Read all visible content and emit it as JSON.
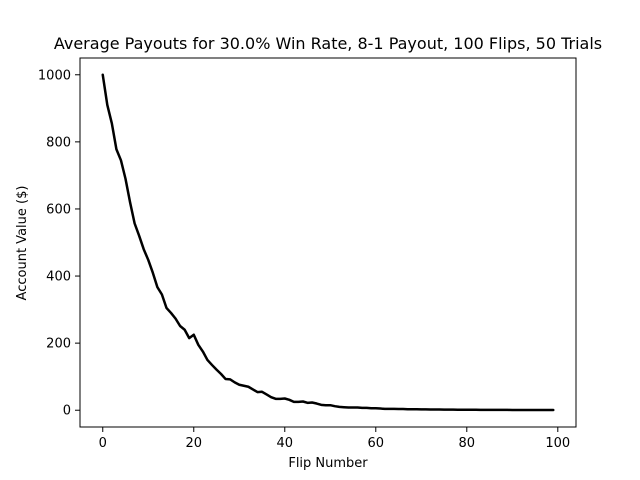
{
  "chart_data": {
    "type": "line",
    "title": "Average Payouts for 30.0% Win Rate, 8-1 Payout, 100 Flips, 50 Trials",
    "xlabel": "Flip Number",
    "ylabel": "Account Value ($)",
    "xlim": [
      -5,
      104
    ],
    "ylim": [
      -50,
      1050
    ],
    "xticks": [
      0,
      20,
      40,
      60,
      80,
      100
    ],
    "yticks": [
      0,
      200,
      400,
      600,
      800,
      1000
    ],
    "xtick_labels": [
      "0",
      "20",
      "40",
      "60",
      "80",
      "100"
    ],
    "ytick_labels": [
      "0",
      "200",
      "400",
      "600",
      "800",
      "1000"
    ],
    "grid": false,
    "series": [
      {
        "color": "#000000",
        "x": [
          0,
          1,
          2,
          3,
          4,
          5,
          6,
          7,
          8,
          9,
          10,
          11,
          12,
          13,
          14,
          15,
          16,
          17,
          18,
          19,
          20,
          21,
          22,
          23,
          24,
          25,
          26,
          27,
          28,
          29,
          30,
          31,
          32,
          33,
          34,
          35,
          36,
          37,
          38,
          39,
          40,
          41,
          42,
          43,
          44,
          45,
          46,
          47,
          48,
          49,
          50,
          51,
          52,
          53,
          54,
          55,
          56,
          57,
          58,
          59,
          60,
          61,
          62,
          63,
          64,
          65,
          66,
          67,
          68,
          69,
          70,
          71,
          72,
          73,
          74,
          75,
          76,
          77,
          78,
          79,
          80,
          81,
          82,
          83,
          84,
          85,
          86,
          87,
          88,
          89,
          90,
          91,
          92,
          93,
          94,
          95,
          96,
          97,
          98,
          99
        ],
        "y": [
          1000,
          910,
          855,
          778,
          745,
          690,
          620,
          557,
          520,
          480,
          448,
          410,
          367,
          345,
          305,
          290,
          273,
          251,
          240,
          215,
          225,
          195,
          175,
          150,
          135,
          121,
          108,
          93,
          92,
          83,
          76,
          73,
          70,
          62,
          54,
          55,
          47,
          39,
          34,
          34,
          35,
          31,
          25,
          25,
          26,
          22,
          23,
          20,
          16,
          15,
          15,
          12,
          10,
          9,
          8,
          8,
          8,
          7,
          7,
          6,
          6,
          5,
          4,
          4,
          4,
          3.5,
          3.5,
          3,
          3,
          2.8,
          2.6,
          2.5,
          2.3,
          2.1,
          2,
          1.9,
          1.8,
          1.7,
          1.6,
          1.5,
          1.4,
          1.3,
          1.3,
          1.2,
          1.1,
          1.1,
          1,
          1,
          0.9,
          0.9,
          0.8,
          0.8,
          0.7,
          0.7,
          0.7,
          0.6,
          0.6,
          0.6,
          0.5,
          0.5
        ]
      }
    ]
  }
}
